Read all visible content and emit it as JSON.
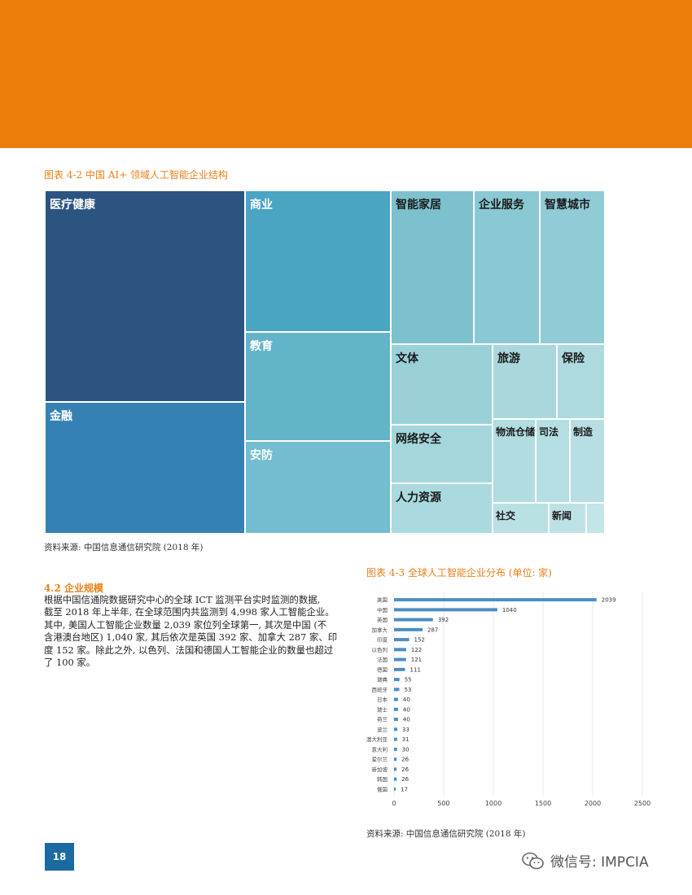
{
  "colors": {
    "banner": "#ec7c0b",
    "accent": "#e8801a",
    "page_badge": "#1b6aa2",
    "bar": "#4a8ec4"
  },
  "figure1": {
    "title": "图表 4-2 中国 AI+ 领域人工智能企业结构",
    "source": "资料来源: 中国信息通信研究院 (2018 年)",
    "tiles": [
      {
        "label": "医疗健康",
        "color": "#2c5481",
        "text": "#ffffff"
      },
      {
        "label": "金融",
        "color": "#3581b4",
        "text": "#ffffff"
      },
      {
        "label": "商业",
        "color": "#4aa5c2",
        "text": "#ffffff"
      },
      {
        "label": "教育",
        "color": "#63b3c9",
        "text": "#ffffff"
      },
      {
        "label": "安防",
        "color": "#72bdd0",
        "text": "#ffffff"
      },
      {
        "label": "智能家居",
        "color": "#7dc1cf",
        "text": "#1a1a1a"
      },
      {
        "label": "企业服务",
        "color": "#8ac8d3",
        "text": "#1a1a1a"
      },
      {
        "label": "智慧城市",
        "color": "#90cbd6",
        "text": "#1a1a1a"
      },
      {
        "label": "文体",
        "color": "#9ad1d9",
        "text": "#1a1a1a"
      },
      {
        "label": "网络安全",
        "color": "#a4d6dc",
        "text": "#1a1a1a"
      },
      {
        "label": "人力资源",
        "color": "#aadadf",
        "text": "#1a1a1a"
      },
      {
        "label": "旅游",
        "color": "#a9d8dc",
        "text": "#1a1a1a"
      },
      {
        "label": "保险",
        "color": "#acdadf",
        "text": "#1a1a1a"
      },
      {
        "label": "物流仓储",
        "color": "#b1dce0",
        "text": "#1a1a1a"
      },
      {
        "label": "司法",
        "color": "#b4dee2",
        "text": "#1a1a1a"
      },
      {
        "label": "制造",
        "color": "#b7dfe3",
        "text": "#1a1a1a"
      },
      {
        "label": "社交",
        "color": "#b9e1e4",
        "text": "#1a1a1a"
      },
      {
        "label": "新闻",
        "color": "#bde2e5",
        "text": "#1a1a1a"
      },
      {
        "label": "",
        "color": "#c2e5e8",
        "text": "#1a1a1a"
      }
    ]
  },
  "section": {
    "title": "4.2 企业规模",
    "lines": [
      "根据中国信通院数据研究中心的全球 ICT 监测平台实时监测的数据,",
      "截至 2018 年上半年, 在全球范围内共监测到 4,998 家人工智能企业。",
      "其中, 美国人工智能企业数量 2,039 家位列全球第一, 其次是中国 (不",
      "含港澳台地区) 1,040 家, 其后依次是英国 392 家、加拿大 287 家、印",
      "度 152 家。除此之外, 以色列、法国和德国人工智能企业的数量也超过",
      "了 100 家。"
    ]
  },
  "figure2": {
    "title": "图表 4-3 全球人工智能企业分布 (单位: 家)",
    "source": "资料来源: 中国信息通信研究院 (2018 年)"
  },
  "chart_data": {
    "type": "bar",
    "orientation": "horizontal",
    "categories": [
      "美国",
      "中国",
      "英国",
      "加拿大",
      "印度",
      "以色列",
      "法国",
      "德国",
      "瑞典",
      "西班牙",
      "日本",
      "瑞士",
      "荷兰",
      "波兰",
      "澳大利亚",
      "意大利",
      "爱尔兰",
      "新加坡",
      "韩国",
      "俄国"
    ],
    "values": [
      2039,
      1040,
      392,
      287,
      152,
      122,
      121,
      111,
      55,
      53,
      40,
      40,
      40,
      33,
      31,
      30,
      26,
      26,
      26,
      17
    ],
    "xlim": [
      0,
      2500
    ],
    "xticks": [
      "0",
      "500",
      "1000",
      "1500",
      "2000",
      "2500"
    ],
    "grid": true
  },
  "page_number": "18",
  "watermark": "微信号: IMPCIA"
}
